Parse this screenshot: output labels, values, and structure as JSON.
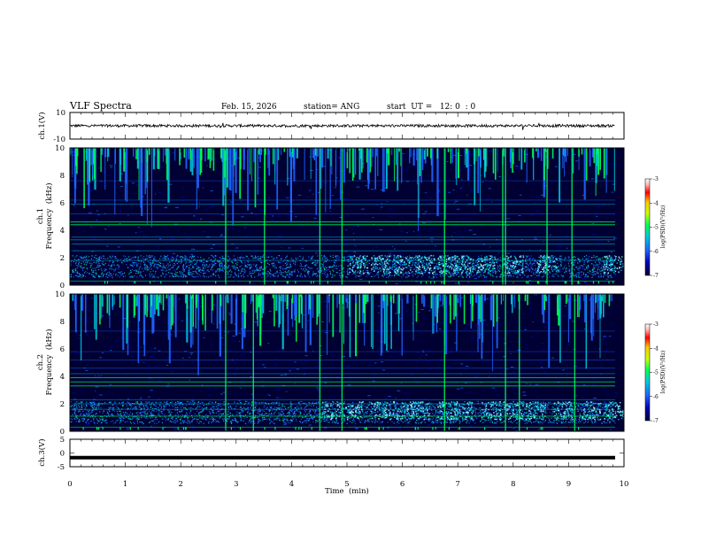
{
  "header": {
    "title": "VLF Spectra",
    "date": "Feb. 15, 2026",
    "station": "station= ANG",
    "start": "start  UT =   12: 0  : 0"
  },
  "chart_data": [
    {
      "type": "line",
      "panel": "ch1-waveform",
      "ylabel": "ch.1(V)",
      "ylim": [
        -10,
        10
      ],
      "yticks": [
        "10",
        "-10"
      ],
      "baseline": 0,
      "series": [
        {
          "name": "ch.1",
          "description": "noisy signal near 0 V",
          "amplitude": 1
        }
      ]
    },
    {
      "type": "heatmap",
      "panel": "ch1-spectrogram",
      "ylabel": "ch.1",
      "ylabel2": "Frequency  (kHz)",
      "ylim": [
        0,
        10
      ],
      "yticks": [
        "0",
        "2",
        "4",
        "6",
        "8",
        "10"
      ],
      "xlim": [
        0,
        10
      ],
      "colorbar": {
        "label": "log(PSD)(V²/Hz)",
        "range": [
          -7,
          -3
        ],
        "ticks": [
          "-3",
          "-4",
          "-5",
          "-6",
          "-7"
        ]
      }
    },
    {
      "type": "heatmap",
      "panel": "ch2-spectrogram",
      "ylabel": "ch.2",
      "ylabel2": "Frequency  (kHz)",
      "ylim": [
        0,
        10
      ],
      "yticks": [
        "0",
        "2",
        "4",
        "6",
        "8",
        "10"
      ],
      "xlim": [
        0,
        10
      ],
      "colorbar": {
        "label": "log(PSD)(V²/Hz)",
        "range": [
          -7,
          -3
        ],
        "ticks": [
          "-3",
          "-4",
          "-5",
          "-6",
          "-7"
        ]
      }
    },
    {
      "type": "line",
      "panel": "ch3-waveform",
      "ylabel": "ch.3(V)",
      "ylim": [
        -5,
        5
      ],
      "yticks": [
        "5",
        "0",
        "-5"
      ],
      "baseline": -1.7,
      "series": [
        {
          "name": "ch.3",
          "description": "flat line near -1.7 V"
        }
      ]
    }
  ],
  "xaxis": {
    "label": "Time  (min)",
    "range": [
      0,
      10
    ],
    "ticks": [
      "0",
      "1",
      "2",
      "3",
      "4",
      "5",
      "6",
      "7",
      "8",
      "9",
      "10"
    ]
  },
  "colors": {
    "background": "#ffffff",
    "axis": "#000000",
    "spectrum_base": "#000033",
    "colormap": [
      "#00003a",
      "#0000b4",
      "#1e64ff",
      "#00c8dc",
      "#00ff5a",
      "#c8ff00",
      "#ffc800",
      "#ff0000",
      "#ffb4b4",
      "#ffffff"
    ]
  }
}
